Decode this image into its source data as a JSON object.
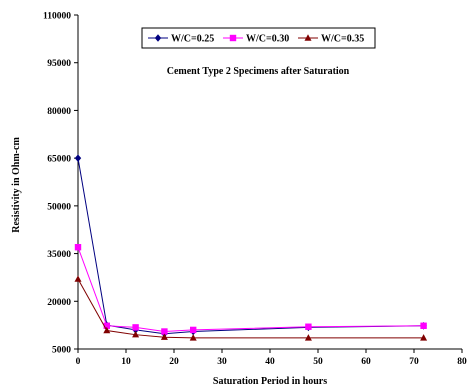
{
  "chart_data": {
    "type": "line",
    "title": "Cement Type 2 Specimens after Saturation",
    "xlabel": "Saturation Period in hours",
    "ylabel": "Resistivity in Ohm-cm",
    "xlim": [
      0,
      80
    ],
    "ylim": [
      5000,
      110000
    ],
    "xticks": [
      "0",
      "10",
      "20",
      "30",
      "40",
      "50",
      "60",
      "70",
      "80"
    ],
    "yticks": [
      "5000",
      "20000",
      "35000",
      "50000",
      "65000",
      "80000",
      "95000",
      "110000"
    ],
    "x": [
      0,
      6,
      12,
      18,
      24,
      48,
      72
    ],
    "series": [
      {
        "name": "W/C=0.25",
        "color": "#000080",
        "marker": "diamond",
        "values": [
          65000,
          12500,
          11000,
          9800,
          10500,
          11800,
          12300
        ]
      },
      {
        "name": "W/C=0.30",
        "color": "#ff00ff",
        "marker": "square",
        "values": [
          37000,
          12300,
          11800,
          10500,
          11000,
          12000,
          12300
        ]
      },
      {
        "name": "W/C=0.35",
        "color": "#800000",
        "marker": "triangle",
        "values": [
          27000,
          10800,
          9500,
          8700,
          8500,
          8500,
          8500
        ]
      }
    ],
    "legend": "top-right",
    "grid": false
  }
}
